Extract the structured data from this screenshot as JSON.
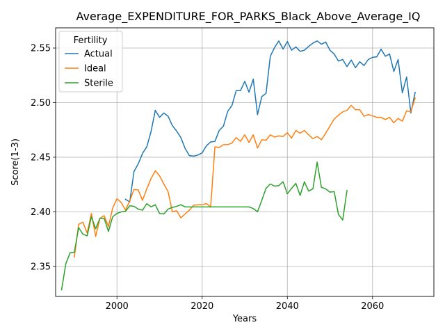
{
  "chart_data": {
    "type": "line",
    "title": "Average_EXPENDITURE_FOR_PARKS_Black_Above_Average_IQ",
    "xlabel": "Years",
    "ylabel": "Score(1-3)",
    "xlim": [
      1985.6,
      2074.4
    ],
    "ylim": [
      2.3225,
      2.5685
    ],
    "xticks": [
      2000,
      2020,
      2040,
      2060
    ],
    "xtick_labels": [
      "2000",
      "2020",
      "2040",
      "2060"
    ],
    "yticks": [
      2.35,
      2.4,
      2.45,
      2.5,
      2.55
    ],
    "ytick_labels": [
      "2.35",
      "2.40",
      "2.45",
      "2.50",
      "2.55"
    ],
    "grid": true,
    "legend": {
      "title": "Fertility",
      "location": "upper-left"
    },
    "series": [
      {
        "name": "Actual",
        "color": "#1f77b4",
        "x": [
          2002,
          2003,
          2004,
          2005,
          2006,
          2007,
          2008,
          2009,
          2010,
          2011,
          2012,
          2013,
          2014,
          2015,
          2016,
          2017,
          2018,
          2019,
          2020,
          2021,
          2022,
          2023,
          2024,
          2025,
          2026,
          2027,
          2028,
          2029,
          2030,
          2031,
          2032,
          2033,
          2034,
          2035,
          2036,
          2037,
          2038,
          2039,
          2040,
          2041,
          2042,
          2043,
          2044,
          2045,
          2046,
          2047,
          2048,
          2049,
          2050,
          2051,
          2052,
          2053,
          2054,
          2055,
          2056,
          2057,
          2058,
          2059,
          2060,
          2061,
          2062,
          2063,
          2064,
          2065,
          2066,
          2067,
          2068,
          2069,
          2070
        ],
        "values": [
          2.4115,
          2.409,
          2.437,
          2.444,
          2.4535,
          2.4595,
          2.4735,
          2.493,
          2.4865,
          2.4905,
          2.4875,
          2.479,
          2.474,
          2.468,
          2.458,
          2.4515,
          2.451,
          2.452,
          2.454,
          2.4605,
          2.464,
          2.4645,
          2.4745,
          2.4785,
          2.492,
          2.4975,
          2.511,
          2.511,
          2.5195,
          2.5095,
          2.5215,
          2.489,
          2.5055,
          2.5085,
          2.5425,
          2.5505,
          2.5565,
          2.549,
          2.556,
          2.548,
          2.551,
          2.547,
          2.548,
          2.5515,
          2.5545,
          2.5565,
          2.5535,
          2.5555,
          2.548,
          2.5445,
          2.538,
          2.5395,
          2.533,
          2.539,
          2.532,
          2.5375,
          2.534,
          2.5395,
          2.5415,
          2.542,
          2.549,
          2.5425,
          2.5445,
          2.5285,
          2.5395,
          2.509,
          2.5235,
          2.4905,
          2.5095
        ]
      },
      {
        "name": "Ideal",
        "color": "#ff7f0e",
        "x": [
          1990,
          1991,
          1992,
          1993,
          1994,
          1995,
          1996,
          1997,
          1998,
          1999,
          2000,
          2001,
          2002,
          2003,
          2004,
          2005,
          2006,
          2007,
          2008,
          2009,
          2010,
          2011,
          2012,
          2013,
          2014,
          2015,
          2016,
          2017,
          2018,
          2019,
          2020,
          2021,
          2022,
          2023,
          2024,
          2025,
          2026,
          2027,
          2028,
          2029,
          2030,
          2031,
          2032,
          2033,
          2034,
          2035,
          2036,
          2037,
          2038,
          2039,
          2040,
          2041,
          2042,
          2043,
          2044,
          2045,
          2046,
          2047,
          2048,
          2049,
          2050,
          2051,
          2052,
          2053,
          2054,
          2055,
          2056,
          2057,
          2058,
          2059,
          2060,
          2061,
          2062,
          2063,
          2064,
          2065,
          2066,
          2067,
          2068,
          2069,
          2070
        ],
        "values": [
          2.3585,
          2.3885,
          2.3905,
          2.3805,
          2.3985,
          2.3775,
          2.394,
          2.3965,
          2.3865,
          2.4035,
          2.412,
          2.4085,
          2.4015,
          2.41,
          2.4205,
          2.42,
          2.4105,
          2.421,
          2.4305,
          2.4375,
          2.433,
          2.4255,
          2.4185,
          2.4,
          2.401,
          2.3945,
          2.398,
          2.4015,
          2.406,
          2.4065,
          2.4065,
          2.4075,
          2.4045,
          2.4595,
          2.459,
          2.4615,
          2.4615,
          2.463,
          2.468,
          2.4645,
          2.4705,
          2.4635,
          2.4705,
          2.4585,
          2.466,
          2.4655,
          2.4705,
          2.4685,
          2.4695,
          2.469,
          2.4725,
          2.4675,
          2.4745,
          2.472,
          2.4745,
          2.4705,
          2.467,
          2.469,
          2.466,
          2.472,
          2.4785,
          2.485,
          2.4885,
          2.4915,
          2.493,
          2.4975,
          2.4935,
          2.4935,
          2.4875,
          2.489,
          2.488,
          2.4865,
          2.4865,
          2.4845,
          2.4865,
          2.4815,
          2.4855,
          2.483,
          2.4925,
          2.4915,
          2.5045
        ]
      },
      {
        "name": "Sterile",
        "color": "#2ca02c",
        "x": [
          1987,
          1988,
          1989,
          1990,
          1991,
          1992,
          1993,
          1994,
          1995,
          1996,
          1997,
          1998,
          1999,
          2000,
          2001,
          2002,
          2003,
          2004,
          2005,
          2006,
          2007,
          2008,
          2009,
          2010,
          2011,
          2012,
          2013,
          2014,
          2015,
          2016,
          2017,
          2018,
          2019,
          2020,
          2021,
          2022,
          2023,
          2024,
          2025,
          2026,
          2027,
          2028,
          2029,
          2030,
          2031,
          2032,
          2033,
          2034,
          2035,
          2036,
          2037,
          2038,
          2039,
          2040,
          2041,
          2042,
          2043,
          2044,
          2045,
          2046,
          2047,
          2048,
          2049,
          2050,
          2051,
          2052,
          2053,
          2054
        ],
        "values": [
          2.3285,
          2.3525,
          2.3625,
          2.363,
          2.3855,
          2.3795,
          2.378,
          2.3955,
          2.3845,
          2.394,
          2.394,
          2.382,
          2.3955,
          2.3985,
          2.4,
          2.4005,
          2.4055,
          2.405,
          2.4025,
          2.4015,
          2.4075,
          2.4045,
          2.4065,
          2.3985,
          2.398,
          2.4025,
          2.404,
          2.405,
          2.4065,
          2.4045,
          2.4045,
          2.4045,
          2.4045,
          2.4045,
          2.4045,
          2.4045,
          2.4045,
          2.4045,
          2.4045,
          2.4045,
          2.4045,
          2.4045,
          2.4045,
          2.4045,
          2.4045,
          2.403,
          2.4,
          2.4105,
          2.4215,
          2.4255,
          2.4235,
          2.424,
          2.4275,
          2.4165,
          2.4215,
          2.426,
          2.415,
          2.4275,
          2.419,
          2.421,
          2.4455,
          2.4225,
          2.421,
          2.418,
          2.4185,
          2.3975,
          2.3925,
          2.4195
        ]
      }
    ]
  }
}
